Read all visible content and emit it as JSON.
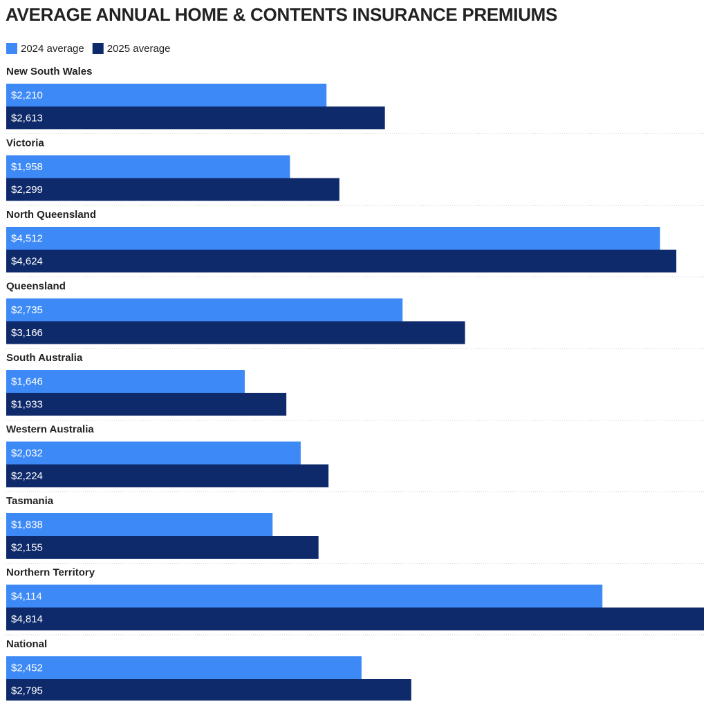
{
  "chart_data": {
    "type": "bar",
    "orientation": "horizontal",
    "title": "AVERAGE ANNUAL HOME & CONTENTS INSURANCE PREMIUMS",
    "categories": [
      "New South Wales",
      "Victoria",
      "North Queensland",
      "Queensland",
      "South Australia",
      "Western Australia",
      "Tasmania",
      "Northern Territory",
      "National"
    ],
    "series": [
      {
        "name": "2024 average",
        "color": "#3d8af7",
        "values": [
          2210,
          1958,
          4512,
          2735,
          1646,
          2032,
          1838,
          4114,
          2452
        ],
        "value_labels": [
          "$2,210",
          "$1,958",
          "$4,512",
          "$2,735",
          "$1,646",
          "$2,032",
          "$1,838",
          "$4,114",
          "$2,452"
        ]
      },
      {
        "name": "2025 average",
        "color": "#0f2a6b",
        "values": [
          2613,
          2299,
          4624,
          3166,
          1933,
          2224,
          2155,
          4814,
          2795
        ],
        "value_labels": [
          "$2,613",
          "$2,299",
          "$4,624",
          "$3,166",
          "$1,933",
          "$2,224",
          "$2,155",
          "$4,814",
          "$2,795"
        ]
      }
    ],
    "legend": "top-left"
  }
}
